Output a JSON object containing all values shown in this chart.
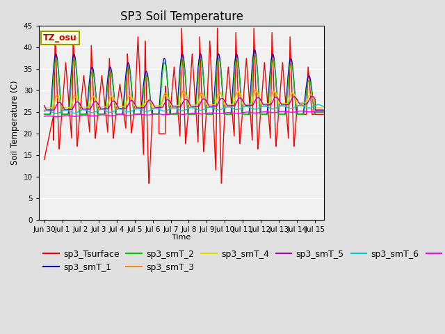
{
  "title": "SP3 Soil Temperature",
  "xlabel": "Time",
  "ylabel": "Soil Temperature (C)",
  "ylim": [
    0,
    45
  ],
  "yticks": [
    0,
    5,
    10,
    15,
    20,
    25,
    30,
    35,
    40,
    45
  ],
  "xtick_labels": [
    "Jun 30",
    "Jul 1",
    "Jul 2",
    "Jul 3",
    "Jul 4",
    "Jul 5",
    "Jul 6",
    "Jul 7",
    "Jul 8",
    "Jul 9",
    "Jul 10",
    "Jul 11",
    "Jul 12",
    "Jul 13",
    "Jul 14",
    "Jul 15"
  ],
  "xtick_positions": [
    0,
    1,
    2,
    3,
    4,
    5,
    6,
    7,
    8,
    9,
    10,
    11,
    12,
    13,
    14,
    15
  ],
  "annotation_text": "TZ_osu",
  "series_colors": {
    "sp3_Tsurface": "#ff0000",
    "sp3_smT_1": "#0000cc",
    "sp3_smT_2": "#00cc00",
    "sp3_smT_3": "#ff8800",
    "sp3_smT_4": "#dddd00",
    "sp3_smT_5": "#aa00cc",
    "sp3_smT_6": "#00cccc",
    "sp3_smT_7": "#ff00ff"
  },
  "background_color": "#e0e0e0",
  "plot_bg_color": "#f0f0f0",
  "title_fontsize": 12,
  "legend_fontsize": 9,
  "figsize": [
    6.4,
    4.8
  ],
  "dpi": 100
}
